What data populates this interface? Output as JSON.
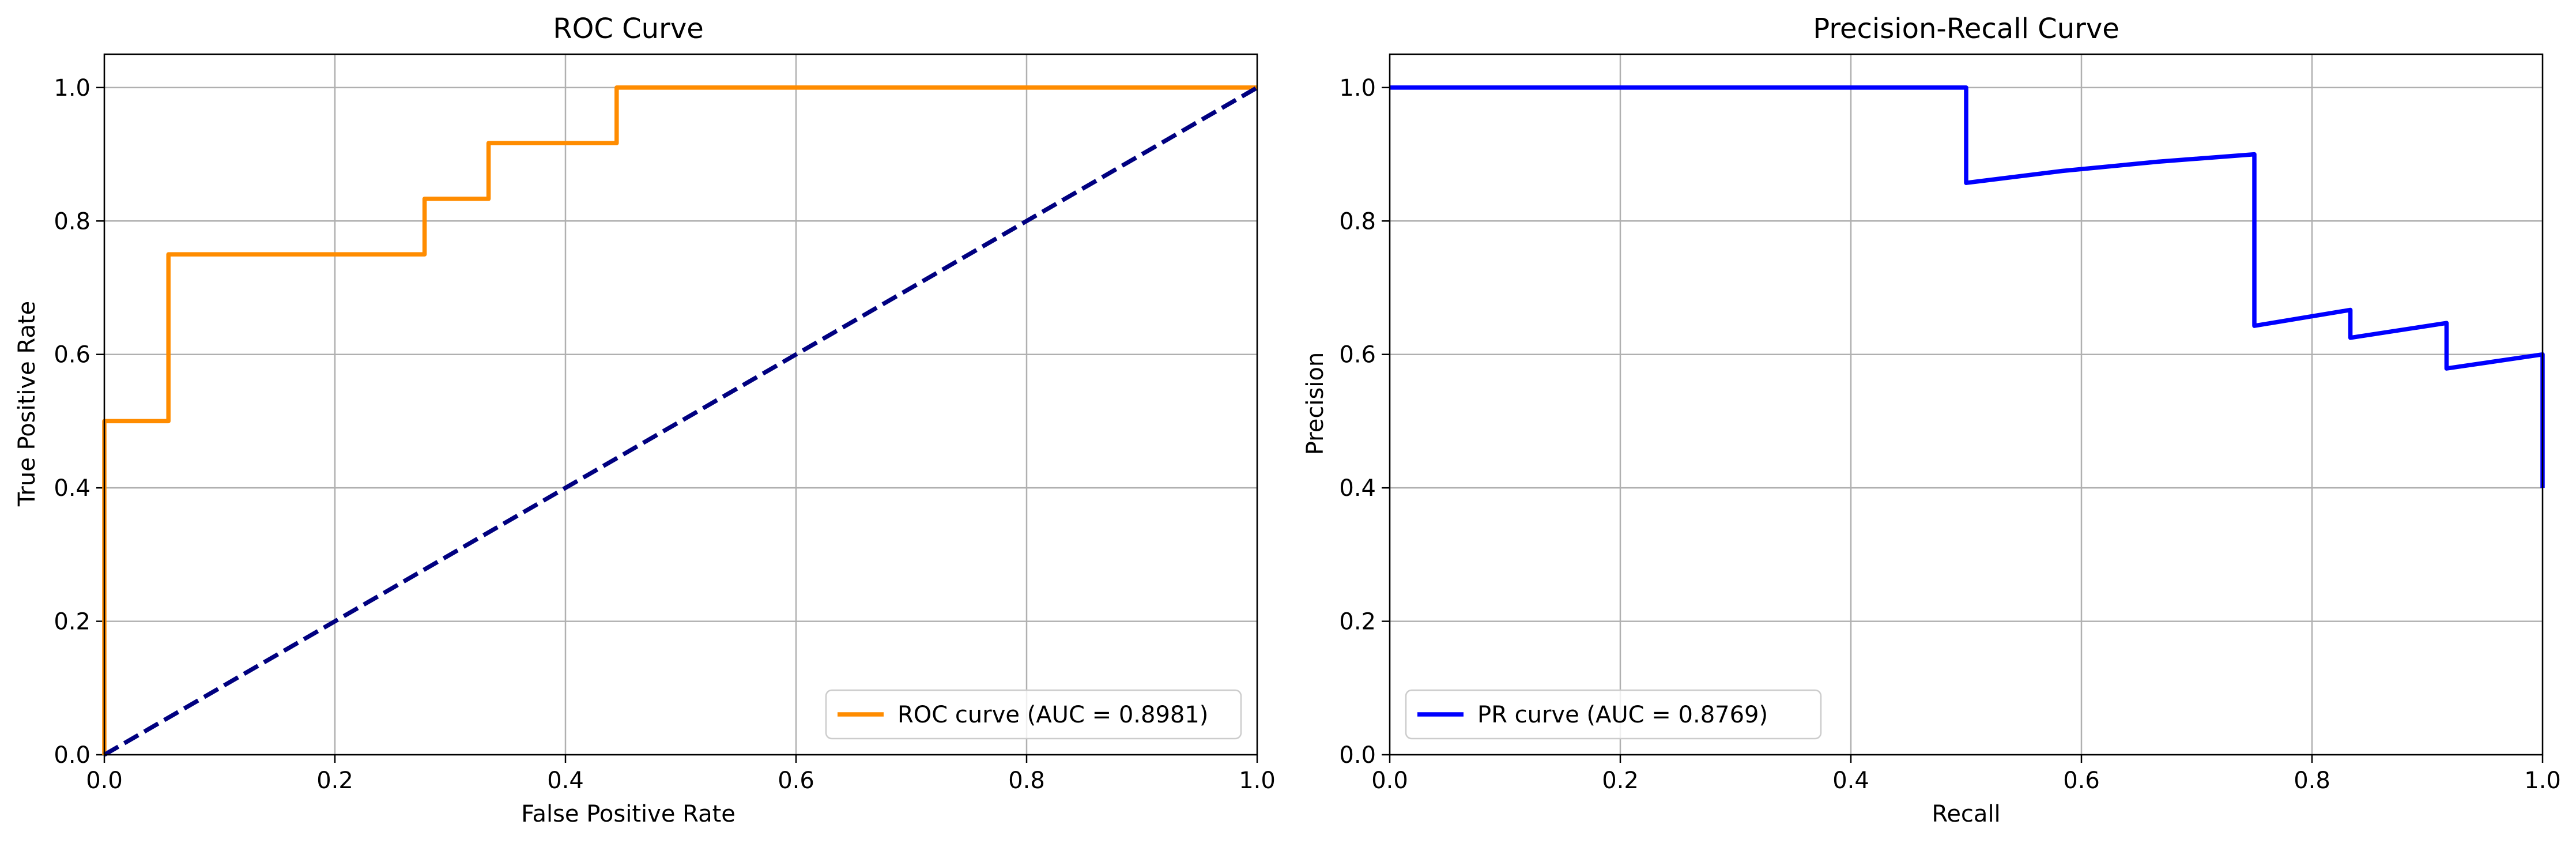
{
  "chart_data": [
    {
      "type": "line",
      "title": "ROC Curve",
      "xlabel": "False Positive Rate",
      "ylabel": "True Positive Rate",
      "xlim": [
        0.0,
        1.0
      ],
      "ylim": [
        0.0,
        1.05
      ],
      "xticks": [
        "0.0",
        "0.2",
        "0.4",
        "0.6",
        "0.8",
        "1.0"
      ],
      "yticks": [
        "0.0",
        "0.2",
        "0.4",
        "0.6",
        "0.8",
        "1.0"
      ],
      "grid": true,
      "legend_position": "lower-right",
      "series": [
        {
          "name": "ROC curve (AUC = 0.8981)",
          "color": "#ff8c00",
          "style": "solid",
          "in_legend": true,
          "x": [
            0,
            0,
            0.0556,
            0.0556,
            0.2778,
            0.2778,
            0.3333,
            0.3333,
            0.4444,
            0.4444,
            1.0
          ],
          "y": [
            0,
            0.5,
            0.5,
            0.75,
            0.75,
            0.8333,
            0.8333,
            0.9167,
            0.9167,
            1.0,
            1.0
          ]
        },
        {
          "name": "",
          "color": "#000080",
          "style": "dashed",
          "in_legend": false,
          "x": [
            0,
            1
          ],
          "y": [
            0,
            1
          ]
        }
      ]
    },
    {
      "type": "line",
      "title": "Precision-Recall Curve",
      "xlabel": "Recall",
      "ylabel": "Precision",
      "xlim": [
        0.0,
        1.0
      ],
      "ylim": [
        0.0,
        1.05
      ],
      "xticks": [
        "0.0",
        "0.2",
        "0.4",
        "0.6",
        "0.8",
        "1.0"
      ],
      "yticks": [
        "0.0",
        "0.2",
        "0.4",
        "0.6",
        "0.8",
        "1.0"
      ],
      "grid": true,
      "legend_position": "lower-left",
      "series": [
        {
          "name": "PR curve (AUC = 0.8769)",
          "color": "#0000ff",
          "style": "solid",
          "in_legend": true,
          "x": [
            0,
            0.5,
            0.5,
            0.5833,
            0.6667,
            0.75,
            0.75,
            0.8333,
            0.8333,
            0.9167,
            0.9167,
            1.0,
            1.0
          ],
          "y": [
            1.0,
            1.0,
            0.8571,
            0.875,
            0.8889,
            0.9,
            0.6429,
            0.6667,
            0.625,
            0.6471,
            0.5789,
            0.6,
            0.4
          ]
        }
      ]
    }
  ]
}
